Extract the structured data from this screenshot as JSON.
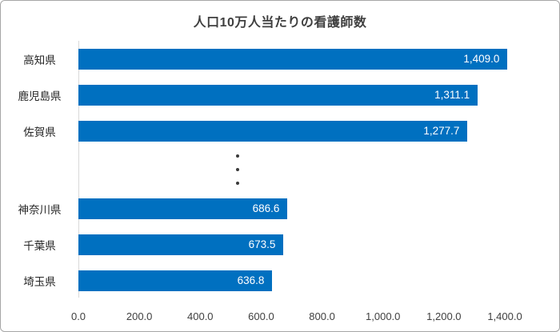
{
  "chart_data": {
    "type": "bar",
    "orientation": "horizontal",
    "title": "人口10万人当たりの看護師数",
    "categories": [
      "高知県",
      "鹿児島県",
      "佐賀県",
      "神奈川県",
      "千葉県",
      "埼玉県"
    ],
    "values": [
      1409.0,
      1311.1,
      1277.7,
      686.6,
      673.5,
      636.8
    ],
    "value_labels": [
      "1,409.0",
      "1,311.1",
      "1,277.7",
      "686.6",
      "673.5",
      "636.8"
    ],
    "ellipsis_after_index": 2,
    "x_ticks": [
      "0.0",
      "200.0",
      "400.0",
      "600.0",
      "800.0",
      "1,000.0",
      "1,200.0",
      "1,400.0"
    ],
    "xlim": [
      0,
      1400
    ],
    "bar_color": "#0070C0",
    "value_label_color": "#FFFFFF",
    "grid": false,
    "legend": false,
    "xlabel": "",
    "ylabel": ""
  }
}
